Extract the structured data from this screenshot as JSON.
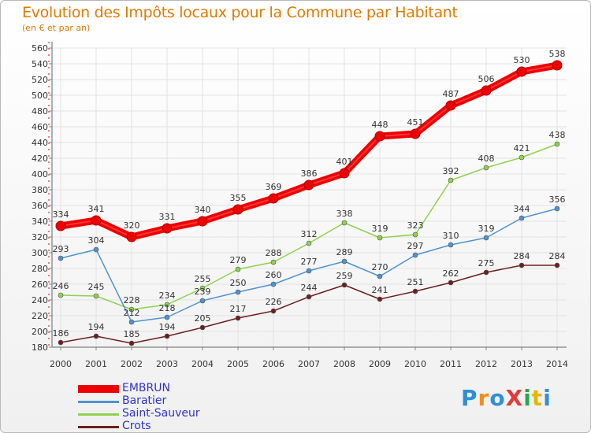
{
  "title": "Evolution des Impôts locaux pour la Commune par Habitant",
  "subtitle": "(en € et par an)",
  "logo": {
    "text": "ProXiti",
    "letter_colors": [
      "#2e8fd6",
      "#f28c1e",
      "#2e8fd6",
      "#e23b3b",
      "#27a84a",
      "#e5b800",
      "#2e8fd6"
    ]
  },
  "chart_data": {
    "type": "line",
    "x": [
      "2000",
      "2001",
      "2002",
      "2003",
      "2004",
      "2005",
      "2006",
      "2007",
      "2008",
      "2009",
      "2010",
      "2011",
      "2012",
      "2013",
      "2014"
    ],
    "ylim": [
      180,
      560
    ],
    "ytick_step": 20,
    "grid": true,
    "legend_position": "bottom-left",
    "series": [
      {
        "name": "EMBRUN",
        "color": "#ee0000",
        "values": [
          334,
          341,
          320,
          331,
          340,
          355,
          369,
          386,
          401,
          448,
          451,
          487,
          506,
          530,
          538
        ],
        "highlight": true
      },
      {
        "name": "Baratier",
        "color": "#4f93cf",
        "values": [
          293,
          304,
          212,
          218,
          239,
          250,
          260,
          277,
          289,
          270,
          297,
          310,
          319,
          344,
          356
        ]
      },
      {
        "name": "Saint-Sauveur",
        "color": "#8fd14f",
        "values": [
          246,
          245,
          228,
          234,
          255,
          279,
          288,
          312,
          338,
          319,
          323,
          392,
          408,
          421,
          438
        ]
      },
      {
        "name": "Crots",
        "color": "#6b1f1f",
        "values": [
          186,
          194,
          185,
          194,
          205,
          217,
          226,
          244,
          259,
          241,
          251,
          262,
          275,
          284,
          284
        ]
      }
    ]
  }
}
